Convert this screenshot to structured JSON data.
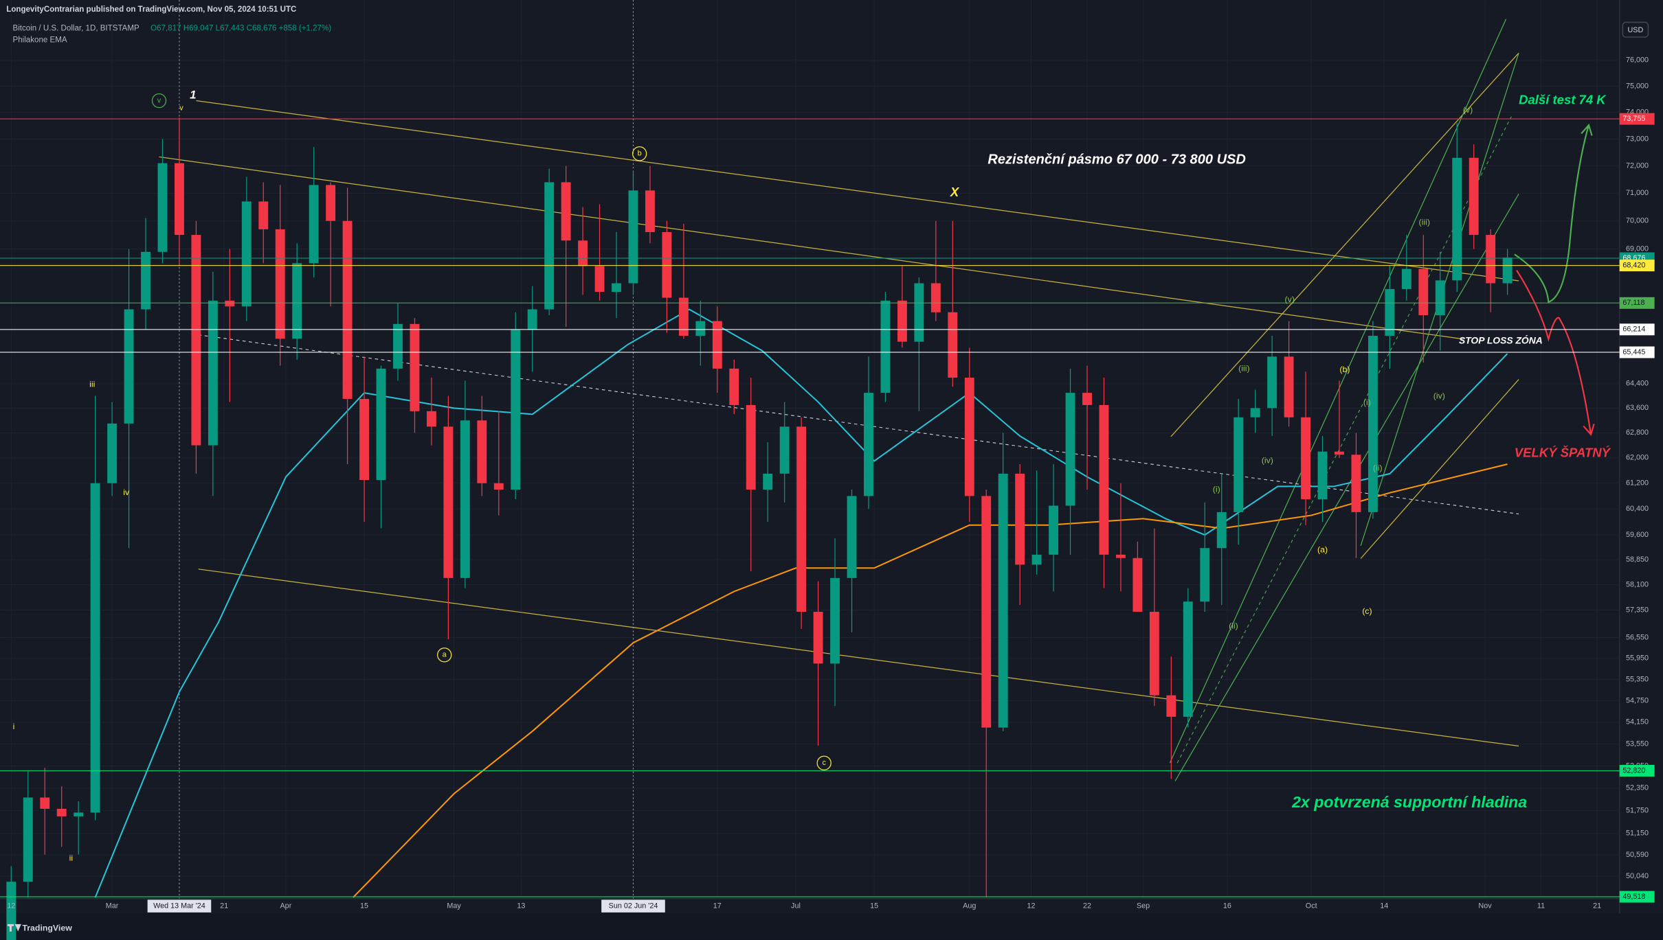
{
  "header": {
    "publisher": "LongevityContrarian published on TradingView.com, Nov 05, 2024 10:51 UTC",
    "brand": "TradingView"
  },
  "chart_data": {
    "type": "candlestick",
    "title": "Bitcoin / U.S. Dollar, 1D, BITSTAMP",
    "subtitle": "O67,817 H69,047 L67,443 C68,676 +858 (+1.27%)",
    "indicator": "Philakone EMA",
    "currency": "USD",
    "log_scale": true,
    "up_color": "#089981",
    "down_color": "#f23645",
    "x": [
      "2024-02-12",
      "2024-02-15",
      "2024-02-18",
      "2024-02-21",
      "2024-02-24",
      "2024-02-27",
      "2024-03-01",
      "2024-03-04",
      "2024-03-07",
      "2024-03-10",
      "2024-03-13",
      "2024-03-16",
      "2024-03-19",
      "2024-03-22",
      "2024-03-25",
      "2024-03-28",
      "2024-03-31",
      "2024-04-03",
      "2024-04-06",
      "2024-04-09",
      "2024-04-12",
      "2024-04-15",
      "2024-04-18",
      "2024-04-21",
      "2024-04-24",
      "2024-04-27",
      "2024-04-30",
      "2024-05-03",
      "2024-05-06",
      "2024-05-09",
      "2024-05-12",
      "2024-05-15",
      "2024-05-18",
      "2024-05-21",
      "2024-05-24",
      "2024-05-27",
      "2024-05-30",
      "2024-06-02",
      "2024-06-05",
      "2024-06-08",
      "2024-06-11",
      "2024-06-14",
      "2024-06-17",
      "2024-06-20",
      "2024-06-23",
      "2024-06-26",
      "2024-06-29",
      "2024-07-02",
      "2024-07-05",
      "2024-07-08",
      "2024-07-11",
      "2024-07-14",
      "2024-07-17",
      "2024-07-20",
      "2024-07-23",
      "2024-07-26",
      "2024-07-29",
      "2024-08-01",
      "2024-08-04",
      "2024-08-07",
      "2024-08-10",
      "2024-08-13",
      "2024-08-16",
      "2024-08-19",
      "2024-08-22",
      "2024-08-25",
      "2024-08-28",
      "2024-08-31",
      "2024-09-03",
      "2024-09-06",
      "2024-09-09",
      "2024-09-12",
      "2024-09-15",
      "2024-09-18",
      "2024-09-21",
      "2024-09-24",
      "2024-09-27",
      "2024-09-30",
      "2024-10-03",
      "2024-10-06",
      "2024-10-09",
      "2024-10-12",
      "2024-10-15",
      "2024-10-18",
      "2024-10-21",
      "2024-10-24",
      "2024-10-27",
      "2024-10-30",
      "2024-11-02",
      "2024-11-05"
    ],
    "open": [
      48300,
      49900,
      52100,
      51800,
      51600,
      51700,
      61200,
      63100,
      66900,
      68900,
      72100,
      69500,
      62400,
      67200,
      67000,
      70700,
      69700,
      65900,
      68500,
      71300,
      70000,
      63900,
      61300,
      64900,
      66400,
      63500,
      63000,
      58300,
      63200,
      61200,
      61000,
      66200,
      66900,
      71400,
      69300,
      68400,
      67500,
      67800,
      71100,
      69600,
      67300,
      66000,
      66500,
      64900,
      63700,
      61000,
      61500,
      63000,
      57300,
      55800,
      58300,
      60800,
      64100,
      67200,
      65800,
      67800,
      66800,
      64600,
      60800,
      54000,
      61500,
      58700,
      59000,
      60500,
      64100,
      63700,
      59000,
      58900,
      57300,
      54900,
      54300,
      57600,
      59200,
      60300,
      63300,
      63600,
      65300,
      63300,
      60700,
      62200,
      62100,
      60300,
      66000,
      67600,
      68300,
      66700,
      67900,
      72300,
      69500,
      67800
    ],
    "high": [
      50300,
      52800,
      52900,
      52400,
      52000,
      64000,
      63800,
      69000,
      70100,
      73000,
      73800,
      70000,
      68200,
      69000,
      71600,
      71400,
      71300,
      69200,
      72700,
      71400,
      71200,
      65300,
      65000,
      67100,
      66600,
      64600,
      64000,
      64500,
      64000,
      63500,
      66800,
      67700,
      71900,
      72000,
      70500,
      70600,
      69600,
      71800,
      72000,
      70000,
      69900,
      67200,
      67000,
      65200,
      64600,
      62500,
      63800,
      63300,
      58200,
      59500,
      61000,
      65300,
      67500,
      68400,
      68000,
      70000,
      70000,
      65600,
      61000,
      62800,
      61800,
      61600,
      61800,
      64900,
      65000,
      64600,
      61200,
      59400,
      59800,
      56000,
      58000,
      60600,
      61500,
      63900,
      64200,
      66000,
      66500,
      64800,
      62700,
      64500,
      62800,
      66500,
      68400,
      69500,
      69500,
      68900,
      73600,
      72800,
      69700,
      69000
    ],
    "low": [
      47700,
      49500,
      50600,
      50800,
      50600,
      51500,
      60800,
      59200,
      66200,
      68500,
      68400,
      61500,
      60800,
      63800,
      66500,
      68500,
      65000,
      65200,
      68000,
      67000,
      61800,
      60000,
      59800,
      64500,
      62800,
      62400,
      56500,
      58000,
      60800,
      60200,
      60700,
      64800,
      66700,
      66300,
      67400,
      67200,
      66600,
      67400,
      69200,
      66100,
      65900,
      65000,
      64100,
      63400,
      58500,
      60000,
      60600,
      56800,
      53500,
      54600,
      56700,
      60400,
      63800,
      65600,
      63500,
      66500,
      64300,
      60000,
      49500,
      53900,
      57500,
      58400,
      57900,
      59000,
      61000,
      58000,
      57900,
      57300,
      54600,
      52600,
      54000,
      57300,
      57500,
      59300,
      62800,
      62700,
      63000,
      59900,
      60000,
      62000,
      58900,
      60100,
      64900,
      67200,
      65100,
      65500,
      67500,
      69000,
      66800,
      67400
    ],
    "close": [
      49900,
      52100,
      51800,
      51600,
      51700,
      61200,
      63100,
      66900,
      68900,
      72100,
      69500,
      62400,
      67200,
      67000,
      70700,
      69700,
      65900,
      68500,
      71300,
      70000,
      63900,
      61300,
      64900,
      66400,
      63500,
      63000,
      58300,
      63200,
      61200,
      61000,
      66200,
      66900,
      71400,
      69300,
      68400,
      67500,
      67800,
      71100,
      69600,
      67300,
      66000,
      66500,
      64900,
      63700,
      61000,
      61500,
      63000,
      57300,
      55800,
      58300,
      60800,
      64100,
      67200,
      65800,
      67800,
      66800,
      64600,
      60800,
      54000,
      61500,
      58700,
      59000,
      60500,
      64100,
      63700,
      59000,
      58900,
      57300,
      54900,
      54300,
      57600,
      59200,
      60300,
      63300,
      63600,
      65300,
      63300,
      60700,
      62200,
      62100,
      60300,
      66000,
      67600,
      68300,
      66700,
      67900,
      72300,
      69500,
      67800,
      68700
    ],
    "ema_lines": [
      {
        "color": "#26c6da",
        "x": [
          "2024-02-27",
          "2024-03-13",
          "2024-03-20",
          "2024-04-01",
          "2024-04-15",
          "2024-05-01",
          "2024-05-15",
          "2024-06-01",
          "2024-06-12",
          "2024-06-25",
          "2024-07-05",
          "2024-07-15",
          "2024-08-01",
          "2024-08-10",
          "2024-08-22",
          "2024-09-05",
          "2024-09-12",
          "2024-09-25",
          "2024-10-05",
          "2024-10-15",
          "2024-10-25",
          "2024-11-05"
        ],
        "values": [
          49500,
          55000,
          57000,
          61400,
          64100,
          63600,
          63400,
          65700,
          66900,
          65500,
          63800,
          61900,
          64100,
          62700,
          61400,
          60100,
          59600,
          61100,
          61100,
          61500,
          63300,
          65400
        ]
      },
      {
        "color": "#ff9800",
        "x": [
          "2024-04-13",
          "2024-05-01",
          "2024-05-15",
          "2024-06-02",
          "2024-06-20",
          "2024-07-01",
          "2024-07-15",
          "2024-08-01",
          "2024-08-15",
          "2024-09-01",
          "2024-09-15",
          "2024-10-01",
          "2024-10-15",
          "2024-11-05"
        ],
        "values": [
          49500,
          52200,
          53900,
          56400,
          57900,
          58600,
          58600,
          59900,
          59900,
          60100,
          59800,
          60200,
          60900,
          61800
        ]
      }
    ],
    "xlim": [
      "2024-02-10",
      "2024-11-25"
    ],
    "ylim": [
      49470,
      78385
    ],
    "yticks": [
      {
        "value": 76000,
        "label": "76,000"
      },
      {
        "value": 75000,
        "label": "75,000"
      },
      {
        "value": 74000,
        "label": "74,000"
      },
      {
        "value": 73000,
        "label": "73,000"
      },
      {
        "value": 72000,
        "label": "72,000"
      },
      {
        "value": 71000,
        "label": "71,000"
      },
      {
        "value": 70000,
        "label": "70,000"
      },
      {
        "value": 69000,
        "label": "69,000"
      },
      {
        "value": 64400,
        "label": "64,400"
      },
      {
        "value": 63600,
        "label": "63,600"
      },
      {
        "value": 62800,
        "label": "62,800"
      },
      {
        "value": 62000,
        "label": "62,000"
      },
      {
        "value": 61200,
        "label": "61,200"
      },
      {
        "value": 60400,
        "label": "60,400"
      },
      {
        "value": 59600,
        "label": "59,600"
      },
      {
        "value": 58850,
        "label": "58,850"
      },
      {
        "value": 58100,
        "label": "58,100"
      },
      {
        "value": 57350,
        "label": "57,350"
      },
      {
        "value": 56550,
        "label": "56,550"
      },
      {
        "value": 55950,
        "label": "55,950"
      },
      {
        "value": 55350,
        "label": "55,350"
      },
      {
        "value": 54750,
        "label": "54,750"
      },
      {
        "value": 54150,
        "label": "54,150"
      },
      {
        "value": 53550,
        "label": "53,550"
      },
      {
        "value": 52950,
        "label": "52,950"
      },
      {
        "value": 52350,
        "label": "52,350"
      },
      {
        "value": 51750,
        "label": "51,750"
      },
      {
        "value": 51150,
        "label": "51,150"
      },
      {
        "value": 50590,
        "label": "50,590"
      },
      {
        "value": 50040,
        "label": "50,040"
      }
    ],
    "xticks": [
      {
        "value": "2024-02-12",
        "label": "12"
      },
      {
        "value": "2024-03-01",
        "label": "Mar"
      },
      {
        "value": "2024-03-21",
        "label": "21"
      },
      {
        "value": "2024-04-01",
        "label": "Apr"
      },
      {
        "value": "2024-04-15",
        "label": "15"
      },
      {
        "value": "2024-05-01",
        "label": "May"
      },
      {
        "value": "2024-05-13",
        "label": "13"
      },
      {
        "value": "2024-06-17",
        "label": "17"
      },
      {
        "value": "2024-07-01",
        "label": "Jul"
      },
      {
        "value": "2024-07-15",
        "label": "15"
      },
      {
        "value": "2024-08-01",
        "label": "Aug"
      },
      {
        "value": "2024-08-12",
        "label": "12"
      },
      {
        "value": "2024-08-22",
        "label": "22"
      },
      {
        "value": "2024-09-01",
        "label": "Sep"
      },
      {
        "value": "2024-09-16",
        "label": "16"
      },
      {
        "value": "2024-10-01",
        "label": "Oct"
      },
      {
        "value": "2024-10-14",
        "label": "14"
      },
      {
        "value": "2024-11-01",
        "label": "Nov"
      },
      {
        "value": "2024-11-11",
        "label": "11"
      },
      {
        "value": "2024-11-21",
        "label": "21"
      }
    ],
    "crosshairs": [
      {
        "value": "2024-03-13",
        "label": "Wed 13 Mar '24"
      },
      {
        "value": "2024-06-02",
        "label": "Sun 02 Jun '24"
      }
    ],
    "price_levels": [
      {
        "value": 73755,
        "label": "73,755",
        "color": "#f23645"
      },
      {
        "value": 68676,
        "label": "68,676",
        "color": "#089981"
      },
      {
        "value": 68420,
        "label": "68,420",
        "color": "#ffeb3b"
      },
      {
        "value": 67118,
        "label": "67,118",
        "color": "#4caf50"
      },
      {
        "value": 66214,
        "label": "66,214",
        "color": "#ffffff"
      },
      {
        "value": 65445,
        "label": "65,445",
        "color": "#ffffff"
      },
      {
        "value": 52820,
        "label": "52,820",
        "color": "#00e676"
      },
      {
        "value": 49518,
        "label": "49,518",
        "color": "#00e676"
      }
    ],
    "annotations": [
      {
        "text": "Rezistenční pásmo 67 000 - 73 800 USD",
        "color": "#ffffff"
      },
      {
        "text": "Další test 74 K",
        "color": "#00e676"
      },
      {
        "text": "STOP LOSS ZÓNA",
        "color": "#ffffff"
      },
      {
        "text": "VELKÝ ŠPATNÝ",
        "color": "#f23645"
      },
      {
        "text": "2x potvrzená supportní hladina",
        "color": "#00e676"
      },
      {
        "text": "1",
        "color": "#ffffff"
      },
      {
        "text": "v",
        "color": "#4caf50"
      },
      {
        "text": "v",
        "color": "#ffeb3b"
      },
      {
        "text": "b",
        "color": "#ffeb3b"
      },
      {
        "text": "X",
        "color": "#ffeb3b"
      },
      {
        "text": "a",
        "color": "#ffeb3b"
      },
      {
        "text": "c",
        "color": "#ffeb3b"
      },
      {
        "text": "iii",
        "color": "#ffeb3b"
      },
      {
        "text": "iv",
        "color": "#ffeb3b"
      },
      {
        "text": "i",
        "color": "#ffeb3b"
      },
      {
        "text": "ii",
        "color": "#ffeb3b"
      },
      {
        "text": "(v)",
        "color": "#8bc34a"
      },
      {
        "text": "(iii)",
        "color": "#8bc34a"
      },
      {
        "text": "(v)",
        "color": "#8bc34a"
      },
      {
        "text": "(iii)",
        "color": "#8bc34a"
      },
      {
        "text": "(iv)",
        "color": "#8bc34a"
      },
      {
        "text": "(i)",
        "color": "#8bc34a"
      },
      {
        "text": "(ii)",
        "color": "#8bc34a"
      },
      {
        "text": "(b)",
        "color": "#ffeb3b"
      },
      {
        "text": "(i)",
        "color": "#8bc34a"
      },
      {
        "text": "(ii)",
        "color": "#8bc34a"
      },
      {
        "text": "(iv)",
        "color": "#8bc34a"
      },
      {
        "text": "(a)",
        "color": "#ffeb3b"
      },
      {
        "text": "(c)",
        "color": "#ffeb3b"
      }
    ]
  }
}
